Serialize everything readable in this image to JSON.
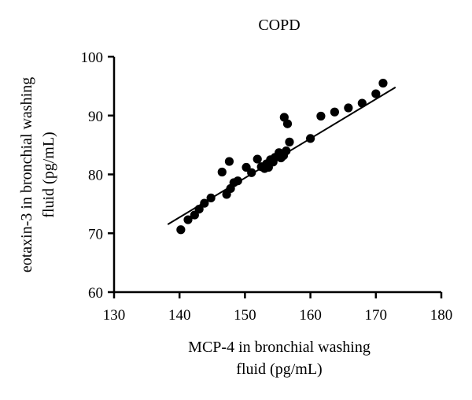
{
  "chart_data": {
    "type": "scatter",
    "title": "COPD",
    "xlabel": [
      "MCP-4 in bronchial washing",
      "fluid (pg/mL)"
    ],
    "ylabel": [
      "eotaxin-3 in bronchial washing",
      "fluid (pg/mL)"
    ],
    "xlim": [
      130,
      180
    ],
    "ylim": [
      60,
      100
    ],
    "xticks": [
      "130",
      "140",
      "150",
      "160",
      "170",
      "180"
    ],
    "yticks": [
      "60",
      "70",
      "80",
      "90",
      "100"
    ],
    "grid": false,
    "legend": "none",
    "marker_color": "#000000",
    "points": [
      {
        "x": 140.2,
        "y": 70.6
      },
      {
        "x": 141.3,
        "y": 72.3
      },
      {
        "x": 142.3,
        "y": 73.1
      },
      {
        "x": 143.0,
        "y": 74.1
      },
      {
        "x": 143.8,
        "y": 75.1
      },
      {
        "x": 144.8,
        "y": 76.0
      },
      {
        "x": 146.5,
        "y": 80.4
      },
      {
        "x": 147.2,
        "y": 76.6
      },
      {
        "x": 147.6,
        "y": 82.2
      },
      {
        "x": 147.8,
        "y": 77.6
      },
      {
        "x": 148.3,
        "y": 78.6
      },
      {
        "x": 148.9,
        "y": 78.9
      },
      {
        "x": 150.2,
        "y": 81.2
      },
      {
        "x": 151.0,
        "y": 80.3
      },
      {
        "x": 151.9,
        "y": 82.6
      },
      {
        "x": 152.5,
        "y": 81.3
      },
      {
        "x": 153.0,
        "y": 81.0
      },
      {
        "x": 153.3,
        "y": 81.8
      },
      {
        "x": 153.6,
        "y": 81.2
      },
      {
        "x": 153.9,
        "y": 82.5
      },
      {
        "x": 154.3,
        "y": 82.1
      },
      {
        "x": 154.6,
        "y": 82.9
      },
      {
        "x": 154.9,
        "y": 83.0
      },
      {
        "x": 155.2,
        "y": 83.7
      },
      {
        "x": 155.5,
        "y": 82.8
      },
      {
        "x": 155.9,
        "y": 83.2
      },
      {
        "x": 156.0,
        "y": 89.7
      },
      {
        "x": 156.3,
        "y": 84.0
      },
      {
        "x": 156.5,
        "y": 88.6
      },
      {
        "x": 156.8,
        "y": 85.5
      },
      {
        "x": 160.0,
        "y": 86.1
      },
      {
        "x": 161.6,
        "y": 89.9
      },
      {
        "x": 163.7,
        "y": 90.6
      },
      {
        "x": 165.8,
        "y": 91.3
      },
      {
        "x": 167.9,
        "y": 92.1
      },
      {
        "x": 170.0,
        "y": 93.7
      },
      {
        "x": 171.1,
        "y": 95.5
      }
    ],
    "fit_line": {
      "x": [
        138.2,
        173.0
      ],
      "y": [
        71.5,
        94.8
      ]
    }
  }
}
